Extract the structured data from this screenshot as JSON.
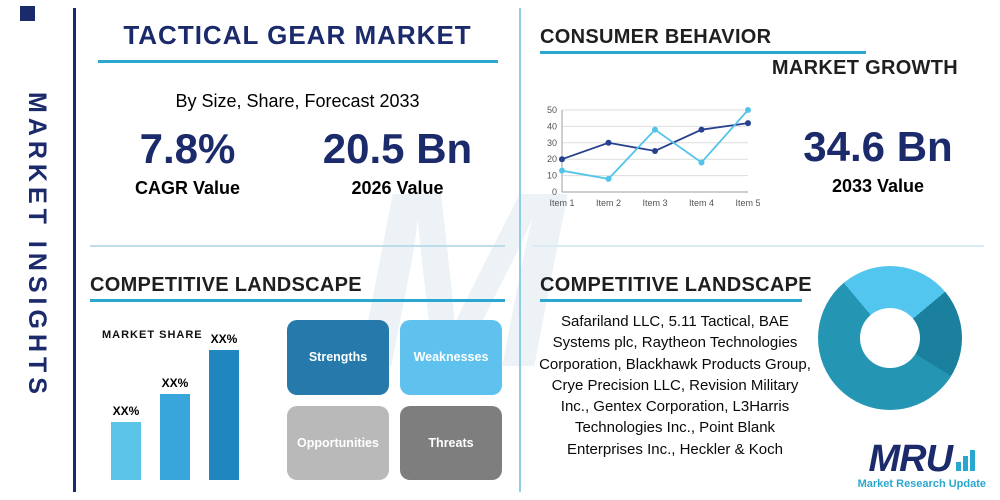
{
  "page": {
    "watermark": "M"
  },
  "sidebar": {
    "label": "MARKET INSIGHTS"
  },
  "header": {
    "title": "TACTICAL GEAR MARKET",
    "subtitle": "By Size, Share, Forecast 2033"
  },
  "stats": {
    "cagr": {
      "value": "7.8%",
      "label": "CAGR Value"
    },
    "y2026": {
      "value": "20.5 Bn",
      "label": "2026 Value"
    },
    "y2033": {
      "value": "34.6 Bn",
      "label": "2033 Value"
    }
  },
  "sections": {
    "consumer_behavior": {
      "title": "CONSUMER BEHAVIOR"
    },
    "market_growth": {
      "title": "MARKET GROWTH"
    },
    "competitive_landscape_left": {
      "title": "COMPETITIVE LANDSCAPE",
      "market_share_label": "MARKET SHARE"
    },
    "competitive_landscape_right": {
      "title": "COMPETITIVE LANDSCAPE",
      "companies": "Safariland LLC, 5.11 Tactical, BAE Systems plc, Raytheon Technologies Corporation, Blackhawk Products Group, Crye Precision LLC, Revision Military Inc., Gentex Corporation, L3Harris Technologies Inc., Point Blank Enterprises Inc., Heckler & Koch"
    }
  },
  "swot": [
    {
      "label": "Strengths",
      "color": "#2679ab"
    },
    {
      "label": "Weaknesses",
      "color": "#5ec1ee"
    },
    {
      "label": "Opportunities",
      "color": "#b9b9b9"
    },
    {
      "label": "Threats",
      "color": "#7e7e7e"
    }
  ],
  "logo": {
    "name": "MRU",
    "tagline": "Market Research Update"
  },
  "colors": {
    "navy": "#1b2a6b",
    "teal": "#2aa7cf",
    "light_blue": "#5ec1ee"
  },
  "chart_data": [
    {
      "type": "line",
      "title": "Consumer behavior / market growth trend",
      "x": [
        "Item 1",
        "Item 2",
        "Item 3",
        "Item 4",
        "Item 5"
      ],
      "ylim": [
        0,
        50
      ],
      "yticks": [
        0,
        10,
        20,
        30,
        40,
        50
      ],
      "grid": true,
      "legend": "none",
      "series": [
        {
          "name": "series-navy",
          "color": "#27408f",
          "values": [
            20,
            30,
            25,
            38,
            42
          ]
        },
        {
          "name": "series-cyan",
          "color": "#53c4e9",
          "values": [
            13,
            8,
            38,
            18,
            50
          ]
        }
      ]
    },
    {
      "type": "bar",
      "title": "Market share",
      "categories": [
        "XX%",
        "XX%",
        "XX%"
      ],
      "values": [
        29,
        43,
        65
      ],
      "ylim": [
        0,
        100
      ],
      "colors": [
        "#5bc3e8",
        "#38a6da",
        "#1f86c0"
      ]
    },
    {
      "type": "pie",
      "title": "Competitive landscape donut",
      "donut": true,
      "values": [
        25,
        20,
        55
      ],
      "colors": [
        "#53c6ef",
        "#1b7f9e",
        "#2496b4"
      ],
      "start_angle_deg": 320
    }
  ]
}
